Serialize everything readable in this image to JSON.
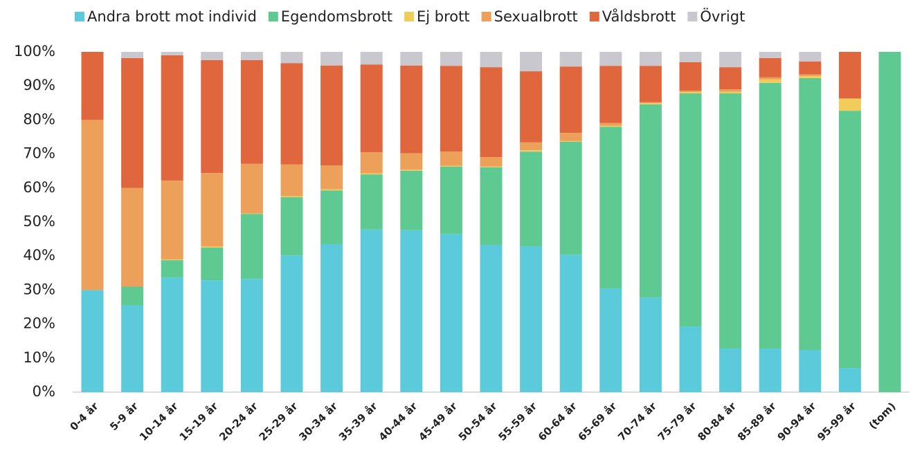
{
  "chart_data": {
    "type": "stacked_bar",
    "categories": [
      "0-4 år",
      "5-9 år",
      "10-14 år",
      "15-19 år",
      "20-24 år",
      "25-29 år",
      "30-34 år",
      "35-39 år",
      "40-44 år",
      "45-49 år",
      "50-54 år",
      "55-59 år",
      "60-64 år",
      "65-69 år",
      "70-74 år",
      "75-79 år",
      "80-84 år",
      "85-89 år",
      "90-94 år",
      "95-99 år",
      "(tom)"
    ],
    "series": [
      {
        "name": "Andra brott mot individ",
        "color": "#5bcbdb",
        "values": [
          30,
          25.5,
          33.7,
          32.9,
          33.3,
          40.2,
          43.5,
          47.8,
          47.6,
          46.5,
          43.3,
          42.9,
          40.4,
          30.5,
          27.8,
          19.3,
          12.8,
          12.8,
          12.4,
          7.1,
          0
        ]
      },
      {
        "name": "Egendomsbrott",
        "color": "#5ec991",
        "values": [
          0,
          5.5,
          5.1,
          9.6,
          19.1,
          17.1,
          15.8,
          16.2,
          17.5,
          19.8,
          22.8,
          27.8,
          33.2,
          47.5,
          56.8,
          68.5,
          75,
          78.1,
          79.9,
          75.6,
          100
        ]
      },
      {
        "name": "Ej brott",
        "color": "#f2cc5a",
        "values": [
          0,
          0,
          0.2,
          0.3,
          0.1,
          0.3,
          0.3,
          0.3,
          0.3,
          0.2,
          0.2,
          0.4,
          0.2,
          0.3,
          0.3,
          0.4,
          0.5,
          1,
          0.6,
          3.6,
          0
        ]
      },
      {
        "name": "Sexualbrott",
        "color": "#eda05a",
        "values": [
          50,
          29,
          23.2,
          21.6,
          14.6,
          9.3,
          7,
          6.2,
          4.8,
          4.2,
          2.8,
          2.3,
          2.4,
          0.8,
          0.3,
          0.4,
          0.7,
          0.6,
          0.5,
          0,
          0
        ]
      },
      {
        "name": "Våldsbrott",
        "color": "#e0673d",
        "values": [
          20,
          38.2,
          36.8,
          33.2,
          30.5,
          29.8,
          29.4,
          25.8,
          25.8,
          25.2,
          26.4,
          20.9,
          19.5,
          16.8,
          10.7,
          8.4,
          6.5,
          5.7,
          3.8,
          13.7,
          0
        ]
      },
      {
        "name": "Övrigt",
        "color": "#c9c8cf",
        "values": [
          0,
          1.8,
          1,
          2.4,
          2.4,
          3.3,
          4,
          3.7,
          4,
          4.1,
          4.5,
          5.7,
          4.3,
          4.1,
          4.1,
          3,
          4.5,
          1.8,
          2.8,
          0,
          0
        ]
      }
    ],
    "ylim": [
      0,
      100
    ],
    "yticks": [
      {
        "value": 0,
        "label": "0%"
      },
      {
        "value": 10,
        "label": "10%"
      },
      {
        "value": 20,
        "label": "20%"
      },
      {
        "value": 30,
        "label": "30%"
      },
      {
        "value": 40,
        "label": "40%"
      },
      {
        "value": 50,
        "label": "50%"
      },
      {
        "value": 60,
        "label": "60%"
      },
      {
        "value": 70,
        "label": "70%"
      },
      {
        "value": 80,
        "label": "80%"
      },
      {
        "value": 90,
        "label": "90%"
      },
      {
        "value": 100,
        "label": "100%"
      }
    ],
    "legend": "top",
    "grid": false
  }
}
